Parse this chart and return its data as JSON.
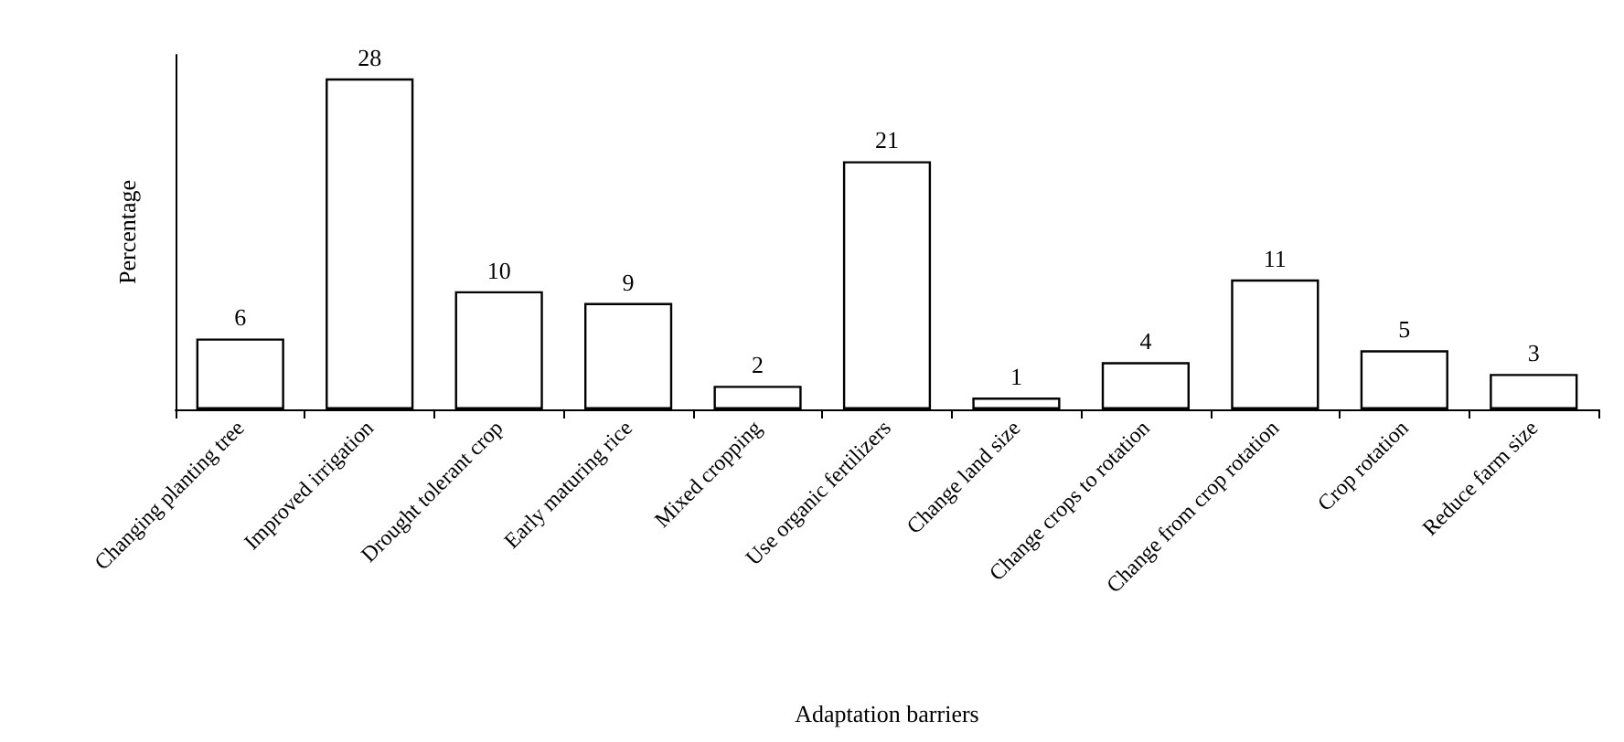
{
  "chart_data": {
    "type": "bar",
    "xlabel": "Adaptation barriers",
    "ylabel": "Percentage",
    "categories": [
      "Changing planting tree",
      "Improved irrigation",
      "Drought tolerant crop",
      "Early maturing rice",
      "Mixed cropping",
      "Use organic fertilizers",
      "Change land size",
      "Change crops to rotation",
      "Change from crop rotation",
      "Crop rotation",
      "Reduce farm size"
    ],
    "values": [
      6,
      28,
      10,
      9,
      2,
      21,
      1,
      4,
      11,
      5,
      3
    ],
    "color": "#ffffff",
    "data_labels": true
  }
}
